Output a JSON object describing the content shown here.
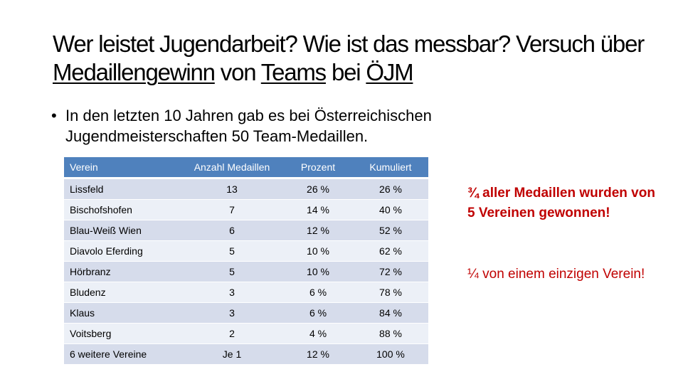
{
  "title": {
    "part1": "Wer leistet Jugendarbeit? Wie ist das messbar? Versuch über ",
    "u1": "Medaillengewinn",
    "mid": " von ",
    "u2": "Teams",
    "mid2": " bei ",
    "u3": "ÖJM"
  },
  "bullet": {
    "marker": "•",
    "text": "In den letzten 10 Jahren gab es bei Österreichischen Jugendmeisterschaften 50 Team-Medaillen."
  },
  "table": {
    "headers": [
      "Verein",
      "Anzahl Medaillen",
      "Prozent",
      "Kumuliert"
    ],
    "rows": [
      [
        "Lissfeld",
        "13",
        "26 %",
        "26 %"
      ],
      [
        "Bischofshofen",
        "7",
        "14 %",
        "40 %"
      ],
      [
        "Blau-Weiß Wien",
        "6",
        "12 %",
        "52 %"
      ],
      [
        "Diavolo Eferding",
        "5",
        "10 %",
        "62 %"
      ],
      [
        "Hörbranz",
        "5",
        "10 %",
        "72 %"
      ],
      [
        "Bludenz",
        "3",
        "6 %",
        "78 %"
      ],
      [
        "Klaus",
        "3",
        "6 %",
        "84 %"
      ],
      [
        "Voitsberg",
        "2",
        "4 %",
        "88 %"
      ],
      [
        "6 weitere Vereine",
        "Je 1",
        "12 %",
        "100 %"
      ]
    ]
  },
  "notes": {
    "note1": "¾ aller Medaillen wurden von 5 Vereinen gewonnen!",
    "note2": "¼ von einem einzigen Verein!"
  },
  "colors": {
    "header_bg": "#4f81bd",
    "row_dark": "#d6dceb",
    "row_light": "#ecf0f7",
    "accent_red": "#c00000"
  }
}
